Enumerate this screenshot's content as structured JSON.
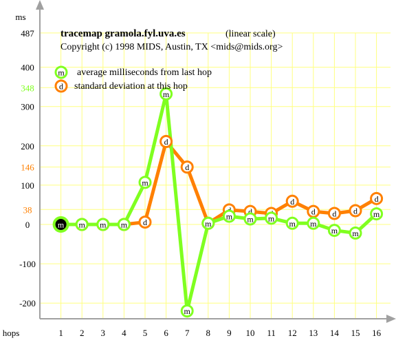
{
  "header": {
    "title": "tracemap gramola.fyl.uva.es",
    "scale_note": "(linear scale)",
    "copyright": "Copyright (c) 1998 MIDS, Austin, TX <mids@mids.org>"
  },
  "colors": {
    "avg": "#80ff20",
    "sd": "#ff8000",
    "grid": "#ffff80",
    "axis": "#a0a0a0",
    "first_marker_fill": "#000000"
  },
  "legend": {
    "placement": "top-left",
    "items": [
      {
        "marker": "m",
        "label": "average milliseconds from last hop",
        "color": "#80ff20"
      },
      {
        "marker": "d",
        "label": "standard deviation at this hop",
        "color": "#ff8000"
      }
    ]
  },
  "chart_data": {
    "type": "line",
    "xlabel": "hops",
    "ylabel": "ms",
    "x": [
      1,
      2,
      3,
      4,
      5,
      6,
      7,
      8,
      9,
      10,
      11,
      12,
      13,
      14,
      15,
      16
    ],
    "xlim": [
      0,
      17
    ],
    "ylim": [
      -245,
      487
    ],
    "y_ticks": [
      -200,
      -100,
      0,
      100,
      200,
      300,
      400
    ],
    "y_special_ticks": [
      {
        "value": 487,
        "label": "487",
        "color": "#000000"
      },
      {
        "value": 348,
        "label": "348",
        "color": "#80ff20"
      },
      {
        "value": 146,
        "label": "146",
        "color": "#ff8000"
      },
      {
        "value": 38,
        "label": "38",
        "color": "#ff8000"
      }
    ],
    "grid": true,
    "series": [
      {
        "name": "average milliseconds from last hop",
        "marker": "m",
        "values": [
          0,
          0,
          0,
          0,
          107,
          332,
          -220,
          3,
          21,
          14,
          16,
          3,
          3,
          -15,
          -22,
          27
        ]
      },
      {
        "name": "standard deviation at this hop",
        "marker": "d",
        "values": [
          0,
          0,
          0,
          0,
          6,
          211,
          146,
          3,
          37,
          33,
          28,
          59,
          33,
          28,
          35,
          66
        ]
      }
    ]
  }
}
